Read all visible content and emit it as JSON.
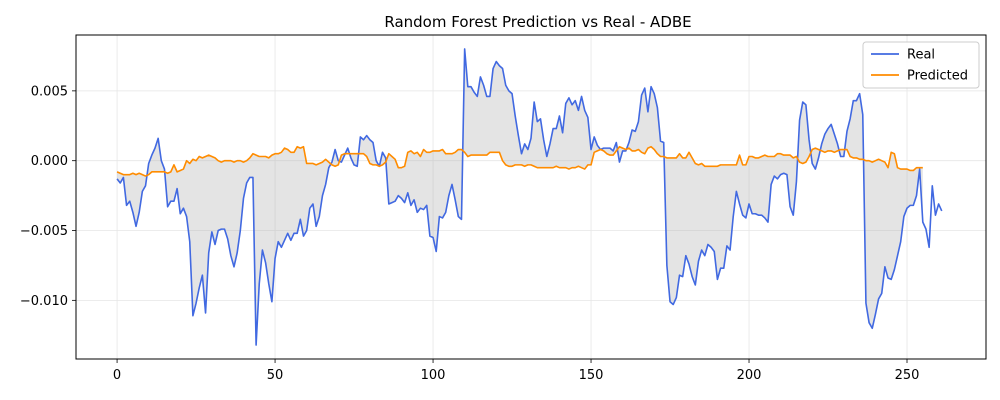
{
  "chart_data": {
    "type": "line",
    "title": "Random Forest Prediction vs Real - ADBE",
    "xlabel": "",
    "ylabel": "",
    "xlim": [
      -13,
      275
    ],
    "ylim": [
      -0.0142,
      0.009
    ],
    "xticks": [
      0,
      50,
      100,
      150,
      200,
      250
    ],
    "xtick_labels": [
      "0",
      "50",
      "100",
      "150",
      "200",
      "250"
    ],
    "yticks": [
      -0.01,
      -0.005,
      0.0,
      0.005
    ],
    "ytick_labels": [
      "−0.010",
      "−0.005",
      "0.000",
      "0.005"
    ],
    "grid": true,
    "fill_between": true,
    "legend_position": "top-right",
    "series": [
      {
        "name": "Real",
        "color": "#4169e1",
        "x_start": 0,
        "x_step": 1,
        "values": [
          -0.0013,
          -0.0016,
          -0.0012,
          -0.0032,
          -0.0029,
          -0.0037,
          -0.0047,
          -0.0037,
          -0.0022,
          -0.0018,
          -0.0002,
          0.0004,
          0.0009,
          0.0016,
          0.0,
          -0.0006,
          -0.0033,
          -0.0029,
          -0.0029,
          -0.002,
          -0.0038,
          -0.0034,
          -0.004,
          -0.0058,
          -0.0111,
          -0.0102,
          -0.0091,
          -0.0082,
          -0.0109,
          -0.0066,
          -0.0051,
          -0.006,
          -0.005,
          -0.0049,
          -0.0049,
          -0.0056,
          -0.0068,
          -0.0076,
          -0.0066,
          -0.005,
          -0.0027,
          -0.0016,
          -0.0012,
          -0.0012,
          -0.0132,
          -0.0088,
          -0.0064,
          -0.0073,
          -0.0088,
          -0.0101,
          -0.007,
          -0.0058,
          -0.0062,
          -0.0057,
          -0.0052,
          -0.0057,
          -0.0052,
          -0.0052,
          -0.0042,
          -0.0054,
          -0.005,
          -0.0034,
          -0.0031,
          -0.0047,
          -0.004,
          -0.0025,
          -0.0017,
          -0.0005,
          -0.0001,
          0.0008,
          0.0,
          -0.0001,
          0.0004,
          0.0009,
          0.0002,
          -0.0003,
          -0.0004,
          0.0017,
          0.0015,
          0.0018,
          0.0015,
          0.0013,
          0.0,
          -0.0004,
          0.0006,
          0.0002,
          -0.0031,
          -0.003,
          -0.0029,
          -0.0025,
          -0.0027,
          -0.003,
          -0.0023,
          -0.0032,
          -0.0028,
          -0.0037,
          -0.0034,
          -0.0035,
          -0.0032,
          -0.0054,
          -0.0055,
          -0.0065,
          -0.004,
          -0.0041,
          -0.0037,
          -0.0025,
          -0.0017,
          -0.0028,
          -0.004,
          -0.0042,
          0.008,
          0.0053,
          0.0053,
          0.0049,
          0.0046,
          0.006,
          0.0054,
          0.0046,
          0.0046,
          0.0066,
          0.0071,
          0.0068,
          0.0066,
          0.0054,
          0.005,
          0.0048,
          0.0032,
          0.0018,
          0.0005,
          0.0012,
          0.0008,
          0.0016,
          0.0042,
          0.0028,
          0.003,
          0.0015,
          0.0003,
          0.0012,
          0.0023,
          0.0023,
          0.0032,
          0.002,
          0.0041,
          0.0045,
          0.004,
          0.0043,
          0.0036,
          0.0046,
          0.0036,
          0.0031,
          0.0008,
          0.0017,
          0.0011,
          0.0008,
          0.0009,
          0.0009,
          0.0009,
          0.0007,
          0.0013,
          -0.0001,
          0.0007,
          0.0007,
          0.0013,
          0.0022,
          0.0021,
          0.0028,
          0.0047,
          0.0052,
          0.0035,
          0.0053,
          0.0048,
          0.0038,
          0.0014,
          0.0013,
          -0.0075,
          -0.0101,
          -0.0103,
          -0.0098,
          -0.0082,
          -0.0083,
          -0.0068,
          -0.0074,
          -0.0083,
          -0.0089,
          -0.0072,
          -0.0064,
          -0.0068,
          -0.006,
          -0.0062,
          -0.0065,
          -0.0085,
          -0.0077,
          -0.0077,
          -0.0061,
          -0.0064,
          -0.004,
          -0.0022,
          -0.0031,
          -0.0039,
          -0.0041,
          -0.0031,
          -0.0038,
          -0.0038,
          -0.0039,
          -0.0039,
          -0.0041,
          -0.0044,
          -0.0017,
          -0.0011,
          -0.0013,
          -0.001,
          -0.0009,
          -0.001,
          -0.0033,
          -0.0039,
          -0.0015,
          0.0029,
          0.0042,
          0.004,
          0.0015,
          -0.0002,
          -0.0006,
          0.0002,
          0.0012,
          0.0019,
          0.0023,
          0.0026,
          0.0019,
          0.0012,
          0.0003,
          0.0003,
          0.0021,
          0.003,
          0.0043,
          0.0043,
          0.0048,
          0.0033,
          -0.0102,
          -0.0116,
          -0.012,
          -0.011,
          -0.0099,
          -0.0095,
          -0.0076,
          -0.0084,
          -0.0085,
          -0.0078,
          -0.0068,
          -0.0058,
          -0.004,
          -0.0034,
          -0.0032,
          -0.0032,
          -0.0025,
          -0.0006,
          -0.0044,
          -0.0049,
          -0.0062,
          -0.0018,
          -0.0039,
          -0.0031,
          -0.0036
        ]
      },
      {
        "name": "Predicted",
        "color": "#ff8c00",
        "x_start": 0,
        "x_step": 1,
        "values": [
          -0.0008,
          -0.0009,
          -0.001,
          -0.001,
          -0.001,
          -0.0009,
          -0.001,
          -0.0009,
          -0.001,
          -0.0011,
          -0.001,
          -0.0008,
          -0.0008,
          -0.0008,
          -0.0008,
          -0.0008,
          -0.0009,
          -0.0008,
          -0.0003,
          -0.0008,
          -0.0007,
          -0.0006,
          0.0,
          -0.0002,
          0.0001,
          0.0,
          0.0003,
          0.0002,
          0.0003,
          0.0004,
          0.0003,
          0.0002,
          0.0,
          -0.0001,
          0.0,
          0.0,
          0.0,
          -0.0001,
          0.0,
          0.0,
          -0.0001,
          0.0,
          0.0002,
          0.0005,
          0.0004,
          0.0003,
          0.0003,
          0.0003,
          0.0002,
          0.0004,
          0.0005,
          0.0005,
          0.0006,
          0.0009,
          0.0008,
          0.0006,
          0.0006,
          0.001,
          0.0009,
          0.001,
          -0.0002,
          -0.0002,
          -0.0002,
          -0.0003,
          -0.0002,
          -0.0001,
          0.0001,
          -0.0001,
          -0.0003,
          -0.0004,
          -0.0003,
          0.0004,
          0.0005,
          0.0005,
          0.0005,
          0.0005,
          0.0005,
          0.0005,
          0.0005,
          0.0003,
          -0.0002,
          -0.0003,
          -0.0003,
          -0.0004,
          -0.0003,
          -0.0001,
          0.0005,
          0.0003,
          0.0001,
          -0.0005,
          -0.0005,
          -0.0004,
          0.0006,
          0.0007,
          0.0005,
          0.0006,
          0.0003,
          0.0008,
          0.0006,
          0.0006,
          0.0007,
          0.0007,
          0.0007,
          0.0008,
          0.0005,
          0.0005,
          0.0005,
          0.0006,
          0.0008,
          0.0008,
          0.0006,
          0.0003,
          0.0004,
          0.0004,
          0.0004,
          0.0004,
          0.0004,
          0.0004,
          0.0006,
          0.0006,
          0.0006,
          0.0006,
          0.0,
          -0.0003,
          -0.0004,
          -0.0004,
          -0.0003,
          -0.0003,
          -0.0003,
          -0.0004,
          -0.0003,
          -0.0003,
          -0.0004,
          -0.0005,
          -0.0005,
          -0.0005,
          -0.0005,
          -0.0005,
          -0.0005,
          -0.0004,
          -0.0005,
          -0.0005,
          -0.0005,
          -0.0006,
          -0.0005,
          -0.0005,
          -0.0004,
          -0.0005,
          -0.0006,
          -0.0003,
          -0.0003,
          0.0006,
          0.0007,
          0.0008,
          0.0007,
          0.0005,
          0.0004,
          0.0004,
          0.0007,
          0.001,
          0.0009,
          0.0008,
          0.0009,
          0.0007,
          0.0007,
          0.0008,
          0.0006,
          0.0005,
          0.0009,
          0.001,
          0.0008,
          0.0005,
          0.0003,
          0.0003,
          0.0002,
          0.0002,
          0.0002,
          0.0002,
          0.0005,
          0.0002,
          0.0002,
          0.0006,
          0.0002,
          -0.0002,
          -0.0003,
          -0.0002,
          -0.0004,
          -0.0004,
          -0.0004,
          -0.0004,
          -0.0004,
          -0.0003,
          -0.0003,
          -0.0003,
          -0.0003,
          -0.0003,
          -0.0003,
          0.0004,
          -0.0003,
          -0.0003,
          0.0003,
          0.0003,
          0.0002,
          0.0002,
          0.0003,
          0.0004,
          0.0003,
          0.0003,
          0.0003,
          0.0005,
          0.0005,
          0.0004,
          0.0004,
          0.0004,
          0.0002,
          0.0003,
          -0.0001,
          -0.0002,
          -0.0001,
          0.0003,
          0.0008,
          0.0009,
          0.0008,
          0.0007,
          0.0006,
          0.0007,
          0.0007,
          0.0006,
          0.0007,
          0.0008,
          0.0008,
          0.0008,
          0.0003,
          0.0002,
          0.0002,
          0.0001,
          0.0001,
          0.0,
          0.0,
          -0.0001,
          0.0,
          0.0001,
          0.0,
          -0.0001,
          -0.0005,
          0.0006,
          0.0005,
          -0.0005,
          -0.0006,
          -0.0006,
          -0.0006,
          -0.0007,
          -0.0007,
          -0.0005,
          -0.0005,
          -0.0005
        ]
      }
    ]
  }
}
